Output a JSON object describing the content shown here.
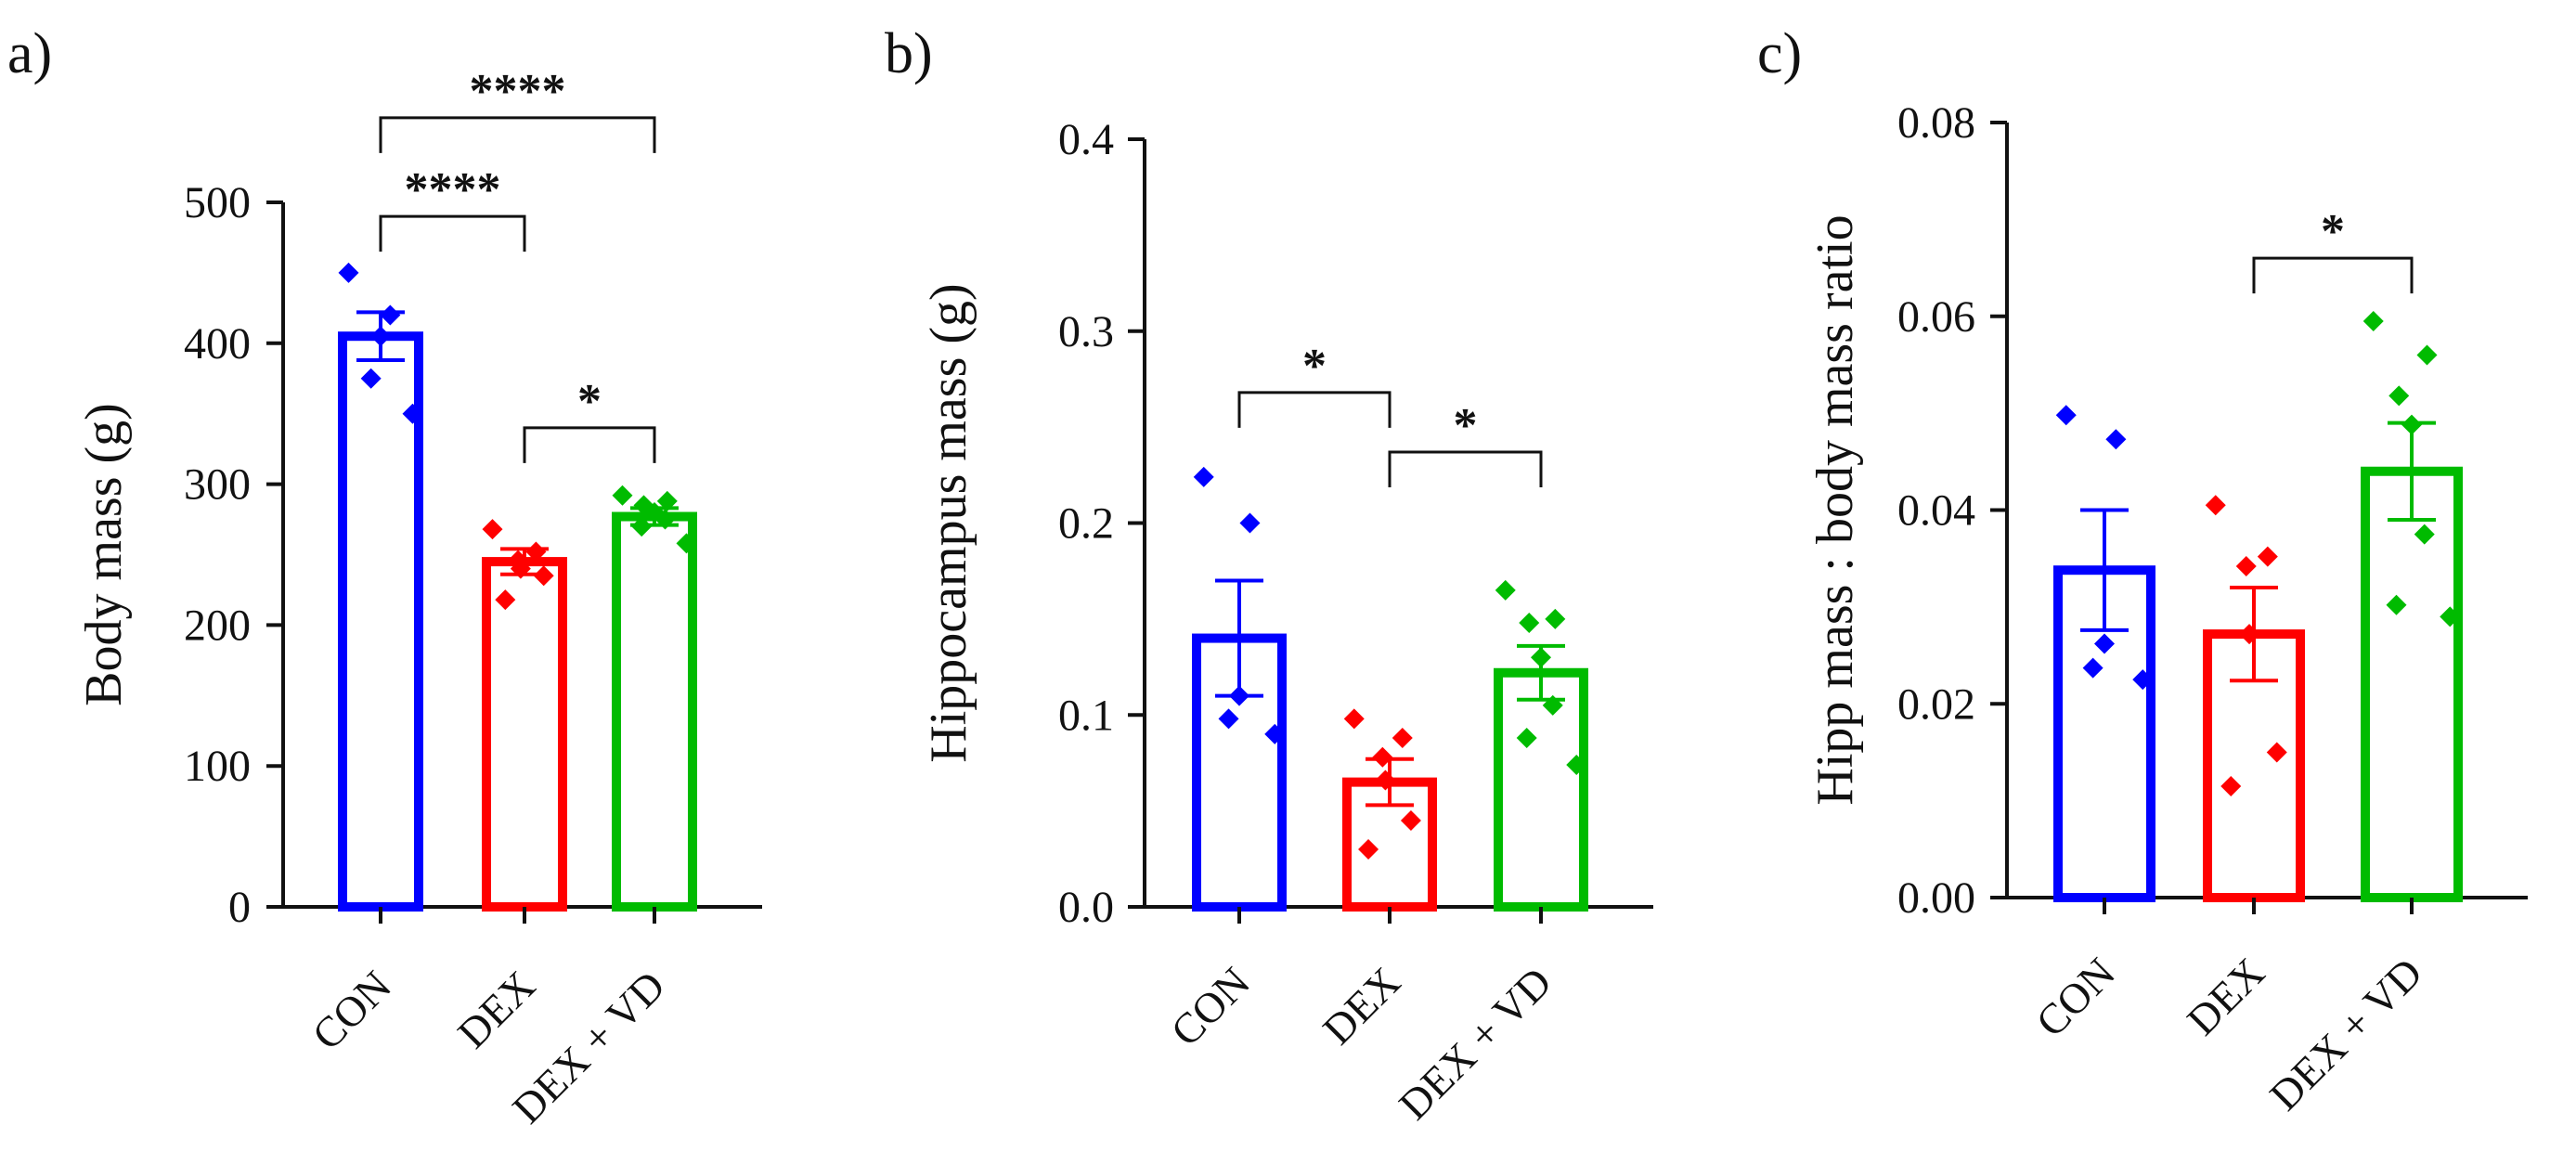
{
  "figure": {
    "categories": [
      "CON",
      "DEX",
      "DEX + VD"
    ],
    "colors": [
      "#0000ff",
      "#ff0000",
      "#00bb00"
    ]
  },
  "chart_data": [
    {
      "type": "bar",
      "panel_label": "a)",
      "ylabel": "Body mass (g)",
      "ylim": [
        0,
        500
      ],
      "yticks": [
        "0",
        "100",
        "200",
        "300",
        "400",
        "500"
      ],
      "categories": [
        "CON",
        "DEX",
        "DEX + VD"
      ],
      "values": [
        405,
        245,
        277
      ],
      "sem": [
        17,
        9,
        6
      ],
      "points": [
        [
          450,
          420,
          405,
          375,
          350
        ],
        [
          268,
          252,
          246,
          240,
          235,
          218
        ],
        [
          292,
          288,
          285,
          280,
          275,
          270,
          258
        ]
      ],
      "significance": [
        {
          "from": 0,
          "to": 1,
          "label": "****",
          "y": 490
        },
        {
          "from": 0,
          "to": 2,
          "label": "****",
          "y": 560
        },
        {
          "from": 1,
          "to": 2,
          "label": "*",
          "y": 340
        }
      ]
    },
    {
      "type": "bar",
      "panel_label": "b)",
      "ylabel": "Hippocampus mass (g)",
      "ylim": [
        0,
        0.4
      ],
      "yticks": [
        "0.0",
        "0.1",
        "0.2",
        "0.3",
        "0.4"
      ],
      "categories": [
        "CON",
        "DEX",
        "DEX + VD"
      ],
      "values": [
        0.14,
        0.065,
        0.122
      ],
      "sem": [
        0.03,
        0.012,
        0.014
      ],
      "points": [
        [
          0.224,
          0.2,
          0.11,
          0.098,
          0.09
        ],
        [
          0.098,
          0.088,
          0.078,
          0.066,
          0.045,
          0.03
        ],
        [
          0.165,
          0.15,
          0.148,
          0.13,
          0.105,
          0.088,
          0.074
        ]
      ],
      "significance": [
        {
          "from": 0,
          "to": 1,
          "label": "*",
          "y": 0.268
        },
        {
          "from": 1,
          "to": 2,
          "label": "*",
          "y": 0.237
        }
      ]
    },
    {
      "type": "bar",
      "panel_label": "c)",
      "ylabel": "Hipp mass : body mass ratio",
      "ylim": [
        0,
        0.08
      ],
      "yticks": [
        "0.00",
        "0.02",
        "0.04",
        "0.06",
        "0.08"
      ],
      "categories": [
        "CON",
        "DEX",
        "DEX + VD"
      ],
      "values": [
        0.0338,
        0.0272,
        0.044
      ],
      "sem": [
        0.0062,
        0.0048,
        0.005
      ],
      "points": [
        [
          0.0498,
          0.0473,
          0.0262,
          0.0237,
          0.0225
        ],
        [
          0.0405,
          0.0352,
          0.0342,
          0.0272,
          0.015,
          0.0115
        ],
        [
          0.0595,
          0.056,
          0.0518,
          0.0488,
          0.0375,
          0.0302,
          0.029
        ]
      ],
      "significance": [
        {
          "from": 1,
          "to": 2,
          "label": "*",
          "y": 0.066
        }
      ]
    }
  ]
}
